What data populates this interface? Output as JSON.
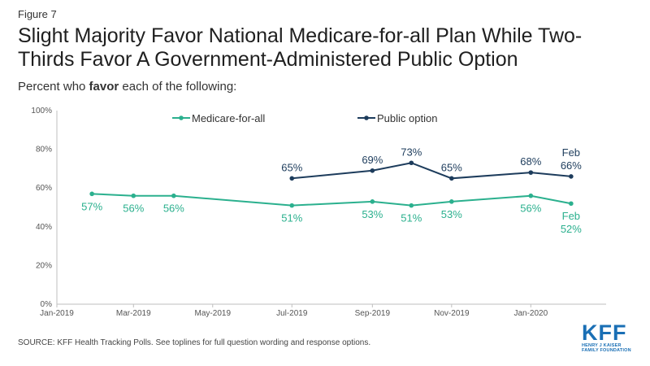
{
  "figure_label": "Figure 7",
  "title": "Slight Majority Favor National Medicare-for-all Plan While Two-Thirds Favor A Government-Administered Public Option",
  "subtitle_pre": "Percent who ",
  "subtitle_bold": "favor",
  "subtitle_post": " each of the following:",
  "source": "SOURCE: KFF Health Tracking Polls. See toplines for full question wording and response options.",
  "logo": {
    "main": "KFF",
    "line1": "HENRY J KAISER",
    "line2": "FAMILY FOUNDATION"
  },
  "chart_data": {
    "type": "line",
    "x_ticks": [
      {
        "date": "2019-01-01",
        "label": "Jan-2019"
      },
      {
        "date": "2019-03-01",
        "label": "Mar-2019"
      },
      {
        "date": "2019-05-01",
        "label": "May-2019"
      },
      {
        "date": "2019-07-01",
        "label": "Jul-2019"
      },
      {
        "date": "2019-09-01",
        "label": "Sep-2019"
      },
      {
        "date": "2019-11-01",
        "label": "Nov-2019"
      },
      {
        "date": "2020-01-01",
        "label": "Jan-2020"
      }
    ],
    "xlim": [
      "2019-01-01",
      "2020-02-28"
    ],
    "ylim": [
      0,
      100
    ],
    "y_ticks": [
      0,
      20,
      40,
      60,
      80,
      100
    ],
    "y_tick_labels": [
      "0%",
      "20%",
      "40%",
      "60%",
      "80%",
      "100%"
    ],
    "grid": false,
    "legend_placement": "top-center",
    "series": [
      {
        "name": "Medicare-for-all",
        "color": "#2bb08e",
        "label_position": "below",
        "points": [
          {
            "date": "2019-01-28",
            "value": 57,
            "label": "57%"
          },
          {
            "date": "2019-03-01",
            "value": 56,
            "label": "56%"
          },
          {
            "date": "2019-04-01",
            "value": 56,
            "label": "56%"
          },
          {
            "date": "2019-07-01",
            "value": 51,
            "label": "51%"
          },
          {
            "date": "2019-09-01",
            "value": 53,
            "label": "53%"
          },
          {
            "date": "2019-10-01",
            "value": 51,
            "label": "51%"
          },
          {
            "date": "2019-11-01",
            "value": 53,
            "label": "53%"
          },
          {
            "date": "2020-01-01",
            "value": 56,
            "label": "56%"
          },
          {
            "date": "2020-02-01",
            "value": 52,
            "label": "52%",
            "extra": "Feb"
          }
        ]
      },
      {
        "name": "Public option",
        "color": "#1d3c5c",
        "label_position": "above",
        "points": [
          {
            "date": "2019-07-01",
            "value": 65,
            "label": "65%"
          },
          {
            "date": "2019-09-01",
            "value": 69,
            "label": "69%"
          },
          {
            "date": "2019-10-01",
            "value": 73,
            "label": "73%"
          },
          {
            "date": "2019-11-01",
            "value": 65,
            "label": "65%"
          },
          {
            "date": "2020-01-01",
            "value": 68,
            "label": "68%"
          },
          {
            "date": "2020-02-01",
            "value": 66,
            "label": "66%",
            "extra": "Feb"
          }
        ]
      }
    ]
  }
}
